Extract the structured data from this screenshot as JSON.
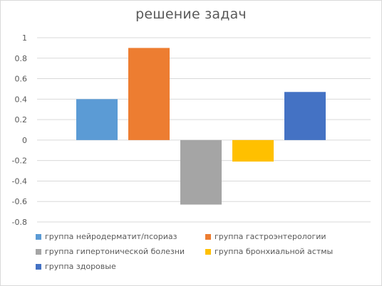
{
  "chart_data": {
    "type": "bar",
    "title": "решение задач",
    "xlabel": "",
    "ylabel": "",
    "ylim": [
      -0.8,
      1
    ],
    "yticks": [
      1,
      0.8,
      0.6,
      0.4,
      0.2,
      0,
      -0.2,
      -0.4,
      -0.6,
      -0.8
    ],
    "ytick_labels": [
      "1",
      "0.8",
      "0.6",
      "0.4",
      "0.2",
      "0",
      "-0.2",
      "-0.4",
      "-0.6",
      "-0.8"
    ],
    "grid": true,
    "legend_position": "bottom",
    "series": [
      {
        "name": "группа нейродерматит/псориаз",
        "value": 0.4,
        "color": "#5b9bd5"
      },
      {
        "name": "группа гастроэнтерологии",
        "value": 0.9,
        "color": "#ed7d31"
      },
      {
        "name": "группа гипертонической болезни",
        "value": -0.63,
        "color": "#a5a5a5"
      },
      {
        "name": "группа бронхиальной астмы",
        "value": -0.21,
        "color": "#ffc000"
      },
      {
        "name": "группа здоровые",
        "value": 0.47,
        "color": "#4472c4"
      }
    ]
  }
}
